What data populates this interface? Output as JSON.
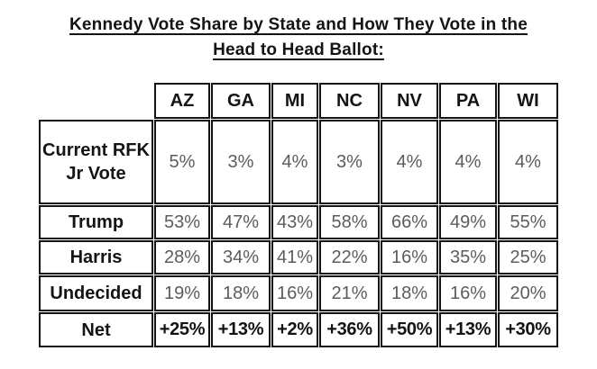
{
  "title": {
    "line1": "Kennedy Vote Share by State and How They Vote in the",
    "line2": "Head to Head Ballot:"
  },
  "chart_data": {
    "type": "table",
    "title": "Kennedy Vote Share by State and How They Vote in the Head to Head Ballot:",
    "columns": [
      "AZ",
      "GA",
      "MI",
      "NC",
      "NV",
      "PA",
      "WI"
    ],
    "rows": [
      {
        "label": "Current RFK Jr Vote",
        "values": [
          "5%",
          "3%",
          "4%",
          "3%",
          "4%",
          "4%",
          "4%"
        ]
      },
      {
        "label": "Trump",
        "values": [
          "53%",
          "47%",
          "43%",
          "58%",
          "66%",
          "49%",
          "55%"
        ]
      },
      {
        "label": "Harris",
        "values": [
          "28%",
          "34%",
          "41%",
          "22%",
          "16%",
          "35%",
          "25%"
        ]
      },
      {
        "label": "Undecided",
        "values": [
          "19%",
          "18%",
          "16%",
          "21%",
          "18%",
          "16%",
          "20%"
        ]
      },
      {
        "label": "Net",
        "values": [
          "+25%",
          "+13%",
          "+2%",
          "+36%",
          "+50%",
          "+13%",
          "+30%"
        ]
      }
    ],
    "colors": {
      "border": "#141414",
      "label_text": "#141414",
      "value_text": "#5c5c5c",
      "net_text": "#141414",
      "background": "#ffffff"
    }
  }
}
